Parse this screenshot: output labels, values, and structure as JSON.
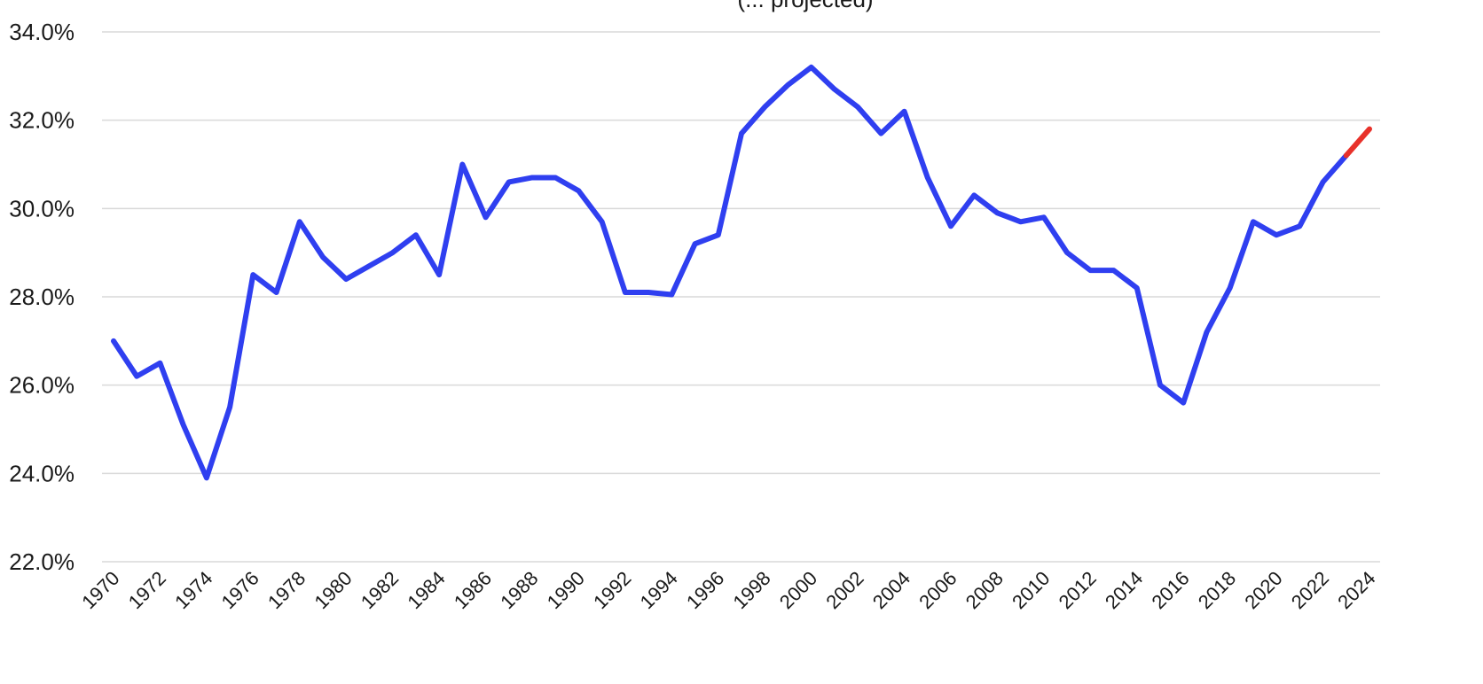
{
  "chart_data": {
    "type": "line",
    "subtitle": "(... projected)",
    "x": [
      1970,
      1971,
      1972,
      1973,
      1974,
      1975,
      1976,
      1977,
      1978,
      1979,
      1980,
      1981,
      1982,
      1983,
      1984,
      1985,
      1986,
      1987,
      1988,
      1989,
      1990,
      1991,
      1992,
      1993,
      1994,
      1995,
      1996,
      1997,
      1998,
      1999,
      2000,
      2001,
      2002,
      2003,
      2004,
      2005,
      2006,
      2007,
      2008,
      2009,
      2010,
      2011,
      2012,
      2013,
      2014,
      2015,
      2016,
      2017,
      2018,
      2019,
      2020,
      2021,
      2022,
      2023,
      2024
    ],
    "series": [
      {
        "color": "#2f3ff0",
        "x": [
          1970,
          1971,
          1972,
          1973,
          1974,
          1975,
          1976,
          1977,
          1978,
          1979,
          1980,
          1981,
          1982,
          1983,
          1984,
          1985,
          1986,
          1987,
          1988,
          1989,
          1990,
          1991,
          1992,
          1993,
          1994,
          1995,
          1996,
          1997,
          1998,
          1999,
          2000,
          2001,
          2002,
          2003,
          2004,
          2005,
          2006,
          2007,
          2008,
          2009,
          2010,
          2011,
          2012,
          2013,
          2014,
          2015,
          2016,
          2017,
          2018,
          2019,
          2020,
          2021,
          2022,
          2023
        ],
        "values": [
          27.0,
          26.2,
          26.5,
          25.1,
          23.9,
          25.5,
          28.5,
          28.1,
          29.7,
          28.9,
          28.4,
          28.7,
          29.0,
          29.4,
          28.5,
          31.0,
          29.8,
          30.6,
          30.7,
          30.7,
          30.4,
          29.7,
          28.1,
          28.1,
          28.05,
          29.2,
          29.4,
          31.7,
          32.3,
          32.8,
          33.2,
          32.7,
          32.3,
          31.7,
          32.2,
          30.7,
          29.6,
          30.3,
          29.9,
          29.7,
          29.8,
          29.0,
          28.6,
          28.6,
          28.2,
          26.0,
          25.6,
          27.2,
          28.2,
          29.7,
          29.4,
          29.6,
          30.6,
          31.2
        ]
      },
      {
        "color": "#e8312a",
        "x": [
          2023,
          2024
        ],
        "values": [
          31.2,
          31.8
        ]
      }
    ],
    "ylim": [
      22.0,
      34.0
    ],
    "yticks": [
      22.0,
      24.0,
      26.0,
      28.0,
      30.0,
      32.0,
      34.0
    ],
    "ytick_labels": [
      "22.0%",
      "24.0%",
      "26.0%",
      "28.0%",
      "30.0%",
      "32.0%",
      "34.0%"
    ],
    "xticks": [
      1970,
      1972,
      1974,
      1976,
      1978,
      1980,
      1982,
      1984,
      1986,
      1988,
      1990,
      1992,
      1994,
      1996,
      1998,
      2000,
      2002,
      2004,
      2006,
      2008,
      2010,
      2012,
      2014,
      2016,
      2018,
      2020,
      2022,
      2024
    ],
    "xtick_labels": [
      "1970",
      "1972",
      "1974",
      "1976",
      "1978",
      "1980",
      "1982",
      "1984",
      "1986",
      "1988",
      "1990",
      "1992",
      "1994",
      "1996",
      "1998",
      "2000",
      "2002",
      "2004",
      "2006",
      "2008",
      "2010",
      "2012",
      "2014",
      "2016",
      "2018",
      "2020",
      "2022",
      "2024"
    ],
    "grid": true,
    "legend": "none"
  }
}
